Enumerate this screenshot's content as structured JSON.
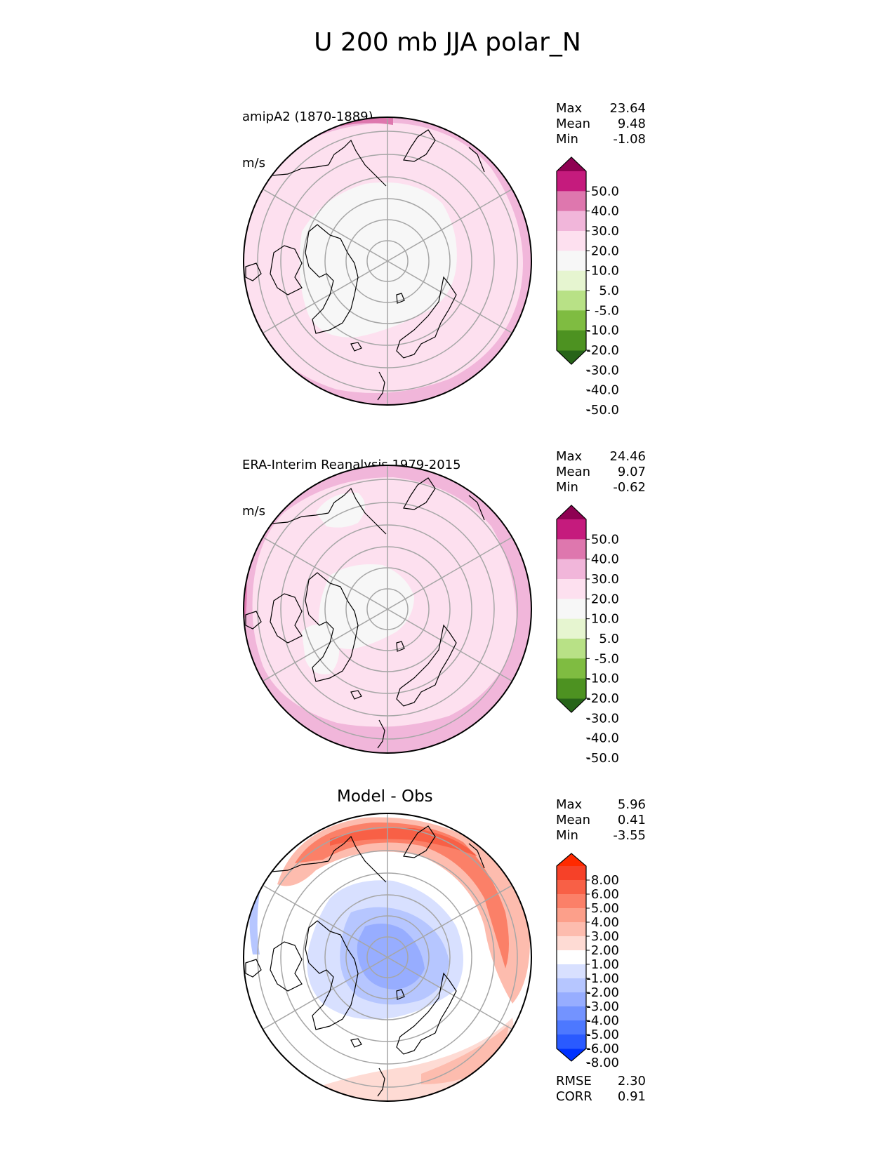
{
  "title": "U 200 mb JJA polar_N",
  "colors": {
    "diverging_pg": [
      "#276419",
      "#4d9221",
      "#7fbc41",
      "#b8e186",
      "#e6f5d0",
      "#f7f7f7",
      "#fde0ef",
      "#f1b6da",
      "#de77ae",
      "#c51b7d",
      "#8e0152"
    ],
    "diverging_rb": [
      "#0032ff",
      "#2a5aff",
      "#4d78ff",
      "#7393ff",
      "#97adff",
      "#b6c6ff",
      "#d8e0ff",
      "#ffffff",
      "#fedbd4",
      "#fdbcae",
      "#fc9f8a",
      "#fb8068",
      "#f86046",
      "#f64128",
      "#ff2a00"
    ],
    "coast": "#000000",
    "grid": "#a6a6a6"
  },
  "panels": [
    {
      "label_line1": "amipA2 (1870-1889)",
      "label_line2": "m/s",
      "stats": {
        "max_label": "Max",
        "max": "23.64",
        "mean_label": "Mean",
        "mean": "9.48",
        "min_label": "Min",
        "min": "-1.08"
      },
      "colorbar_ticks": [
        "50.0",
        "40.0",
        "30.0",
        "20.0",
        "10.0",
        "5.0",
        "-5.0",
        "-10.0",
        "-20.0",
        "-30.0",
        "-40.0",
        "-50.0"
      ]
    },
    {
      "label_line1": "ERA-Interim Reanalysis 1979-2015",
      "label_line2": "m/s",
      "stats": {
        "max_label": "Max",
        "max": "24.46",
        "mean_label": "Mean",
        "mean": "9.07",
        "min_label": "Min",
        "min": "-0.62"
      },
      "colorbar_ticks": [
        "50.0",
        "40.0",
        "30.0",
        "20.0",
        "10.0",
        "5.0",
        "-5.0",
        "-10.0",
        "-20.0",
        "-30.0",
        "-40.0",
        "-50.0"
      ]
    },
    {
      "title": "Model - Obs",
      "stats": {
        "max_label": "Max",
        "max": "5.96",
        "mean_label": "Mean",
        "mean": "0.41",
        "min_label": "Min",
        "min": "-3.55"
      },
      "colorbar_ticks": [
        "8.00",
        "6.00",
        "5.00",
        "4.00",
        "3.00",
        "2.00",
        "1.00",
        "-1.00",
        "-2.00",
        "-3.00",
        "-4.00",
        "-5.00",
        "-6.00",
        "-8.00"
      ],
      "extra": {
        "rmse_label": "RMSE",
        "rmse": "2.30",
        "corr_label": "CORR",
        "corr": "0.91"
      }
    }
  ],
  "chart_data": {
    "type": "heatmap",
    "projection": "north polar stereographic",
    "variable": "U 200 mb",
    "season": "JJA",
    "units": "m/s",
    "panels": [
      {
        "name": "amipA2 (1870-1889)",
        "max": 23.64,
        "mean": 9.48,
        "min": -1.08,
        "levels": [
          -50,
          -40,
          -30,
          -20,
          -10,
          -5,
          5,
          10,
          20,
          30,
          40,
          50
        ]
      },
      {
        "name": "ERA-Interim Reanalysis 1979-2015",
        "max": 24.46,
        "mean": 9.07,
        "min": -0.62,
        "levels": [
          -50,
          -40,
          -30,
          -20,
          -10,
          -5,
          5,
          10,
          20,
          30,
          40,
          50
        ]
      },
      {
        "name": "Model - Obs",
        "max": 5.96,
        "mean": 0.41,
        "min": -3.55,
        "rmse": 2.3,
        "corr": 0.91,
        "levels": [
          -8,
          -6,
          -5,
          -4,
          -3,
          -2,
          -1,
          1,
          2,
          3,
          4,
          5,
          6,
          8
        ]
      }
    ]
  }
}
